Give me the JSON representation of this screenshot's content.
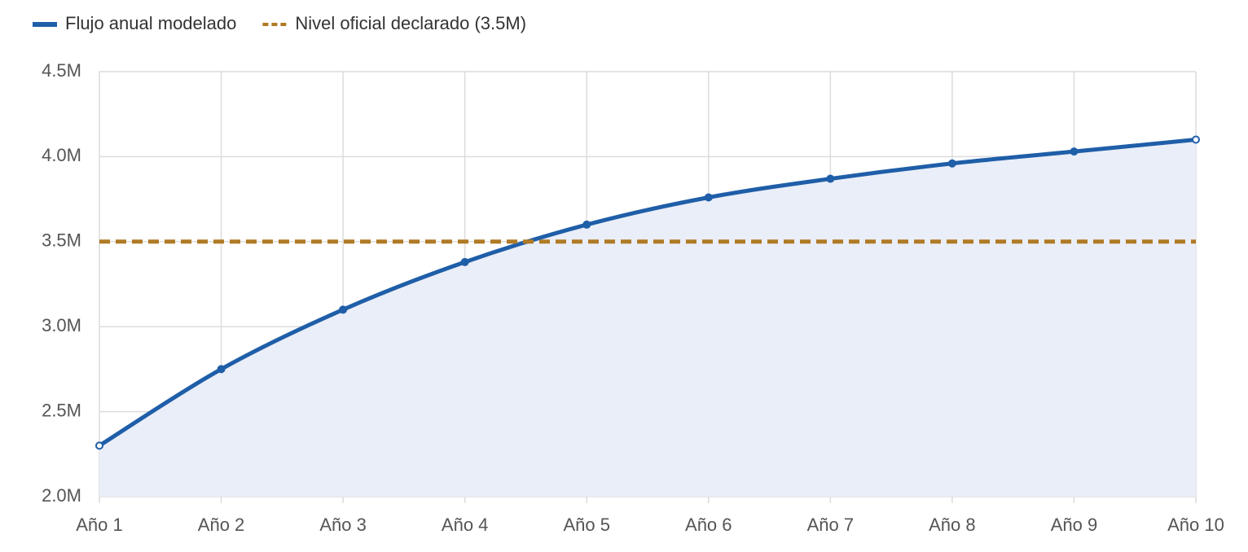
{
  "chart_data": {
    "type": "line",
    "categories": [
      "Año 1",
      "Año 2",
      "Año 3",
      "Año 4",
      "Año 5",
      "Año 6",
      "Año 7",
      "Año 8",
      "Año 9",
      "Año 10"
    ],
    "series": [
      {
        "name": "Flujo anual modelado",
        "color": "#1f5ea8",
        "area": true,
        "area_color": "#eaeef8",
        "values": [
          2300000,
          2750000,
          3100000,
          3380000,
          3600000,
          3760000,
          3870000,
          3960000,
          4030000,
          4100000
        ]
      },
      {
        "name": "Nivel oficial declarado (3.5M)",
        "color": "#b07a25",
        "dashed": true,
        "values": [
          3500000,
          3500000,
          3500000,
          3500000,
          3500000,
          3500000,
          3500000,
          3500000,
          3500000,
          3500000
        ]
      }
    ],
    "ylim": [
      2000000,
      4500000
    ],
    "yticks": [
      {
        "value": 2000000,
        "label": "2.0M"
      },
      {
        "value": 2500000,
        "label": "2.5M"
      },
      {
        "value": 3000000,
        "label": "3.0M"
      },
      {
        "value": 3500000,
        "label": "3.5M"
      },
      {
        "value": 4000000,
        "label": "4.0M"
      },
      {
        "value": 4500000,
        "label": "4.5M"
      }
    ],
    "grid": true,
    "legend": "top-left"
  }
}
